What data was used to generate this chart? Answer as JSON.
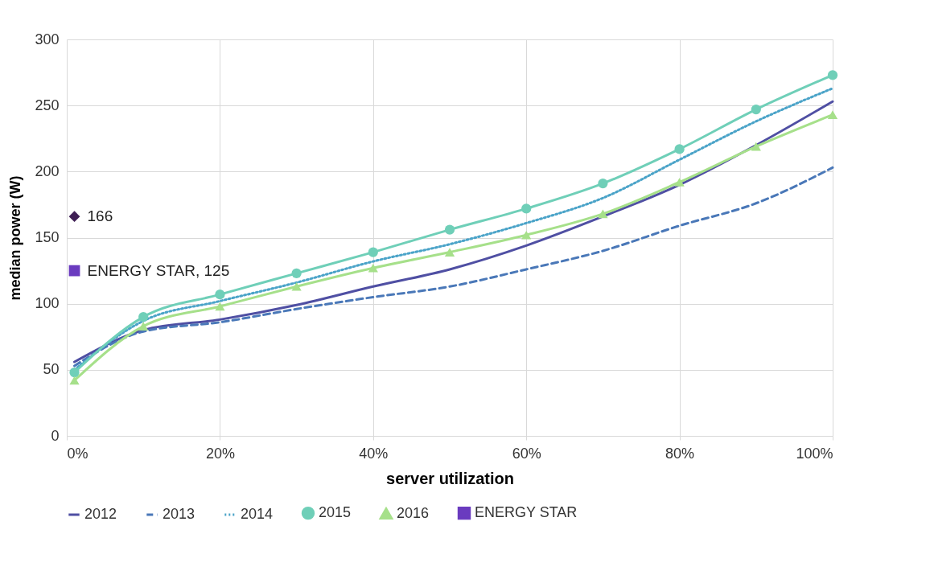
{
  "chart_data": {
    "type": "line",
    "xlabel": "server utilization",
    "ylabel": "median power (W)",
    "xlim": [
      0,
      100
    ],
    "ylim": [
      0,
      300
    ],
    "xticks": [
      {
        "value": 0,
        "label": "0%"
      },
      {
        "value": 20,
        "label": "20%"
      },
      {
        "value": 40,
        "label": "40%"
      },
      {
        "value": 60,
        "label": "60%"
      },
      {
        "value": 80,
        "label": "80%"
      },
      {
        "value": 100,
        "label": "100%"
      }
    ],
    "yticks": [
      0,
      50,
      100,
      150,
      200,
      250,
      300
    ],
    "grid": true,
    "legend": "bottom",
    "series": [
      {
        "name": "2012",
        "color": "#4f4fa3",
        "line_style": "solid",
        "marker": "none",
        "x": [
          1,
          10,
          20,
          30,
          40,
          50,
          60,
          70,
          80,
          90,
          100
        ],
        "values": [
          56,
          80,
          88,
          99,
          113,
          126,
          144,
          166,
          190,
          220,
          253
        ]
      },
      {
        "name": "2013",
        "color": "#4a78b8",
        "line_style": "dashed",
        "marker": "none",
        "x": [
          1,
          10,
          20,
          30,
          40,
          50,
          60,
          70,
          80,
          90,
          100
        ],
        "values": [
          53,
          79,
          86,
          96,
          105,
          113,
          126,
          140,
          159,
          176,
          203
        ]
      },
      {
        "name": "2014",
        "color": "#4aa3c8",
        "line_style": "dotted",
        "marker": "none",
        "x": [
          1,
          10,
          20,
          30,
          40,
          50,
          60,
          70,
          80,
          90,
          100
        ],
        "values": [
          50,
          87,
          102,
          116,
          132,
          145,
          161,
          180,
          209,
          238,
          263
        ]
      },
      {
        "name": "2015",
        "color": "#6fcfb8",
        "line_style": "solid",
        "marker": "circle",
        "x": [
          1,
          10,
          20,
          30,
          40,
          50,
          60,
          70,
          80,
          90,
          100
        ],
        "values": [
          48,
          90,
          107,
          123,
          139,
          156,
          172,
          191,
          217,
          247,
          273
        ]
      },
      {
        "name": "2016",
        "color": "#a6e08a",
        "line_style": "solid",
        "marker": "triangle",
        "x": [
          1,
          10,
          20,
          30,
          40,
          50,
          60,
          70,
          80,
          90,
          100
        ],
        "values": [
          42,
          83,
          98,
          113,
          127,
          139,
          152,
          168,
          192,
          219,
          243
        ]
      },
      {
        "name": "ENERGY STAR",
        "type": "scatter",
        "color": "#6a3bbf",
        "marker": "square",
        "x": [
          1
        ],
        "values": [
          125
        ],
        "value_labels": [
          "ENERGY STAR, 125"
        ]
      },
      {
        "type": "scatter",
        "color": "#3f1f55",
        "marker": "diamond",
        "x": [
          1
        ],
        "values": [
          166
        ],
        "value_labels": [
          "166"
        ]
      }
    ]
  }
}
